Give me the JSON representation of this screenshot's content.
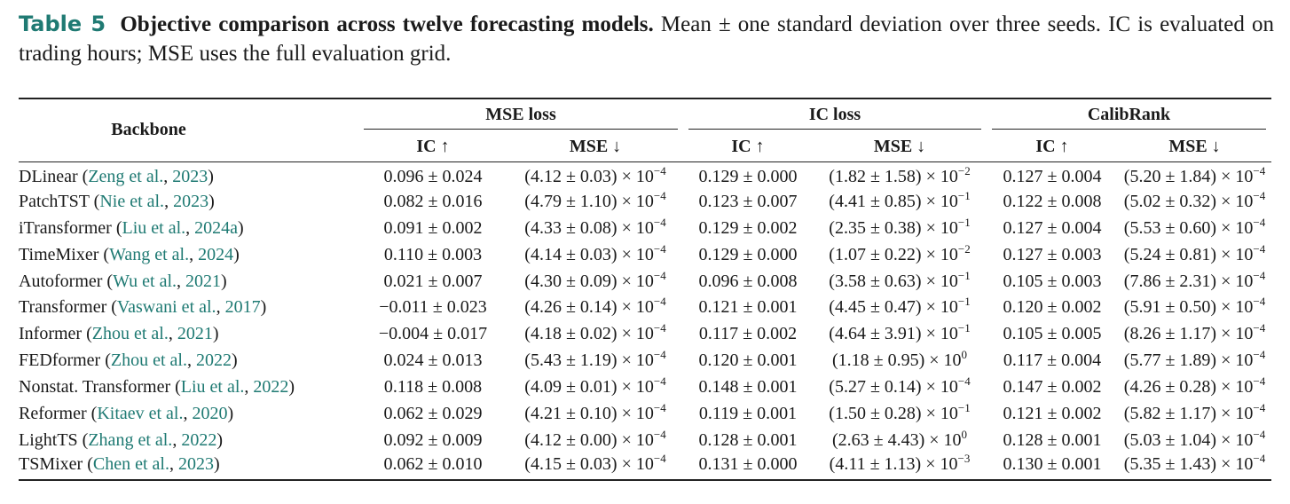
{
  "caption": {
    "label": "Table 5",
    "title": "Objective comparison across twelve forecasting models.",
    "text": " Mean ± one standard deviation over three seeds. IC is evaluated on trading hours; MSE uses the full evaluation grid."
  },
  "table": {
    "backbone_header": "Backbone",
    "groups": [
      "MSE loss",
      "IC loss",
      "CalibRank"
    ],
    "sub_ic": "IC ↑",
    "sub_mse": "MSE ↓",
    "rows": [
      {
        "model": "DLinear",
        "open": " (",
        "author": "Zeng et al.",
        "sep": ", ",
        "year": "2023",
        "close": ")",
        "c": [
          {
            "v": "0.096 ± 0.024"
          },
          {
            "v": "(4.12 ± 0.03) × 10",
            "e": "−4"
          },
          {
            "v": "0.129 ± 0.000"
          },
          {
            "v": "(1.82 ± 1.58) × 10",
            "e": "−2"
          },
          {
            "v": "0.127 ± 0.004"
          },
          {
            "v": "(5.20 ± 1.84) × 10",
            "e": "−4"
          }
        ]
      },
      {
        "model": "PatchTST",
        "open": " (",
        "author": "Nie et al.",
        "sep": ", ",
        "year": "2023",
        "close": ")",
        "c": [
          {
            "v": "0.082 ± 0.016"
          },
          {
            "v": "(4.79 ± 1.10) × 10",
            "e": "−4"
          },
          {
            "v": "0.123 ± 0.007"
          },
          {
            "v": "(4.41 ± 0.85) × 10",
            "e": "−1"
          },
          {
            "v": "0.122 ± 0.008"
          },
          {
            "v": "(5.02 ± 0.32) × 10",
            "e": "−4"
          }
        ]
      },
      {
        "model": "iTransformer",
        "open": " (",
        "author": "Liu et al.",
        "sep": ", ",
        "year": "2024a",
        "close": ")",
        "c": [
          {
            "v": "0.091 ± 0.002"
          },
          {
            "v": "(4.33 ± 0.08) × 10",
            "e": "−4"
          },
          {
            "v": "0.129 ± 0.002"
          },
          {
            "v": "(2.35 ± 0.38) × 10",
            "e": "−1"
          },
          {
            "v": "0.127 ± 0.004"
          },
          {
            "v": "(5.53 ± 0.60) × 10",
            "e": "−4"
          }
        ]
      },
      {
        "model": "TimeMixer",
        "open": " (",
        "author": "Wang et al.",
        "sep": ", ",
        "year": "2024",
        "close": ")",
        "c": [
          {
            "v": "0.110 ± 0.003"
          },
          {
            "v": "(4.14 ± 0.03) × 10",
            "e": "−4"
          },
          {
            "v": "0.129 ± 0.000"
          },
          {
            "v": "(1.07 ± 0.22) × 10",
            "e": "−2"
          },
          {
            "v": "0.127 ± 0.003"
          },
          {
            "v": "(5.24 ± 0.81) × 10",
            "e": "−4"
          }
        ]
      },
      {
        "model": "Autoformer",
        "open": " (",
        "author": "Wu et al.",
        "sep": ", ",
        "year": "2021",
        "close": ")",
        "c": [
          {
            "v": "0.021 ± 0.007"
          },
          {
            "v": "(4.30 ± 0.09) × 10",
            "e": "−4"
          },
          {
            "v": "0.096 ± 0.008"
          },
          {
            "v": "(3.58 ± 0.63) × 10",
            "e": "−1"
          },
          {
            "v": "0.105 ± 0.003"
          },
          {
            "v": "(7.86 ± 2.31) × 10",
            "e": "−4"
          }
        ]
      },
      {
        "model": "Transformer",
        "open": " (",
        "author": "Vaswani et al.",
        "sep": ", ",
        "year": "2017",
        "close": ")",
        "c": [
          {
            "v": "−0.011 ± 0.023"
          },
          {
            "v": "(4.26 ± 0.14) × 10",
            "e": "−4"
          },
          {
            "v": "0.121 ± 0.001"
          },
          {
            "v": "(4.45 ± 0.47) × 10",
            "e": "−1"
          },
          {
            "v": "0.120 ± 0.002"
          },
          {
            "v": "(5.91 ± 0.50) × 10",
            "e": "−4"
          }
        ]
      },
      {
        "model": "Informer",
        "open": " (",
        "author": "Zhou et al.",
        "sep": ", ",
        "year": "2021",
        "close": ")",
        "c": [
          {
            "v": "−0.004 ± 0.017"
          },
          {
            "v": "(4.18 ± 0.02) × 10",
            "e": "−4"
          },
          {
            "v": "0.117 ± 0.002"
          },
          {
            "v": "(4.64 ± 3.91) × 10",
            "e": "−1"
          },
          {
            "v": "0.105 ± 0.005"
          },
          {
            "v": "(8.26 ± 1.17) × 10",
            "e": "−4"
          }
        ]
      },
      {
        "model": "FEDformer",
        "open": " (",
        "author": "Zhou et al.",
        "sep": ", ",
        "year": "2022",
        "close": ")",
        "c": [
          {
            "v": "0.024 ± 0.013"
          },
          {
            "v": "(5.43 ± 1.19) × 10",
            "e": "−4"
          },
          {
            "v": "0.120 ± 0.001"
          },
          {
            "v": "(1.18 ± 0.95) × 10",
            "e": "0"
          },
          {
            "v": "0.117 ± 0.004"
          },
          {
            "v": "(5.77 ± 1.89) × 10",
            "e": "−4"
          }
        ]
      },
      {
        "model": "Nonstat. Transformer",
        "open": " (",
        "author": "Liu et al.",
        "sep": ", ",
        "year": "2022",
        "close": ")",
        "c": [
          {
            "v": "0.118 ± 0.008"
          },
          {
            "v": "(4.09 ± 0.01) × 10",
            "e": "−4"
          },
          {
            "v": "0.148 ± 0.001"
          },
          {
            "v": "(5.27 ± 0.14) × 10",
            "e": "−4"
          },
          {
            "v": "0.147 ± 0.002"
          },
          {
            "v": "(4.26 ± 0.28) × 10",
            "e": "−4"
          }
        ]
      },
      {
        "model": "Reformer",
        "open": " (",
        "author": "Kitaev et al.",
        "sep": ", ",
        "year": "2020",
        "close": ")",
        "c": [
          {
            "v": "0.062 ± 0.029"
          },
          {
            "v": "(4.21 ± 0.10) × 10",
            "e": "−4"
          },
          {
            "v": "0.119 ± 0.001"
          },
          {
            "v": "(1.50 ± 0.28) × 10",
            "e": "−1"
          },
          {
            "v": "0.121 ± 0.002"
          },
          {
            "v": "(5.82 ± 1.17) × 10",
            "e": "−4"
          }
        ]
      },
      {
        "model": "LightTS",
        "open": " (",
        "author": "Zhang et al.",
        "sep": ", ",
        "year": "2022",
        "close": ")",
        "c": [
          {
            "v": "0.092 ± 0.009"
          },
          {
            "v": "(4.12 ± 0.00) × 10",
            "e": "−4"
          },
          {
            "v": "0.128 ± 0.001"
          },
          {
            "v": "(2.63 ± 4.43) × 10",
            "e": "0"
          },
          {
            "v": "0.128 ± 0.001"
          },
          {
            "v": "(5.03 ± 1.04) × 10",
            "e": "−4"
          }
        ]
      },
      {
        "model": "TSMixer",
        "open": " (",
        "author": "Chen et al.",
        "sep": ", ",
        "year": "2023",
        "close": ")",
        "c": [
          {
            "v": "0.062 ± 0.010"
          },
          {
            "v": "(4.15 ± 0.03) × 10",
            "e": "−4"
          },
          {
            "v": "0.131 ± 0.000"
          },
          {
            "v": "(4.11 ± 1.13) × 10",
            "e": "−3"
          },
          {
            "v": "0.130 ± 0.001"
          },
          {
            "v": "(5.35 ± 1.43) × 10",
            "e": "−4"
          }
        ]
      }
    ]
  }
}
